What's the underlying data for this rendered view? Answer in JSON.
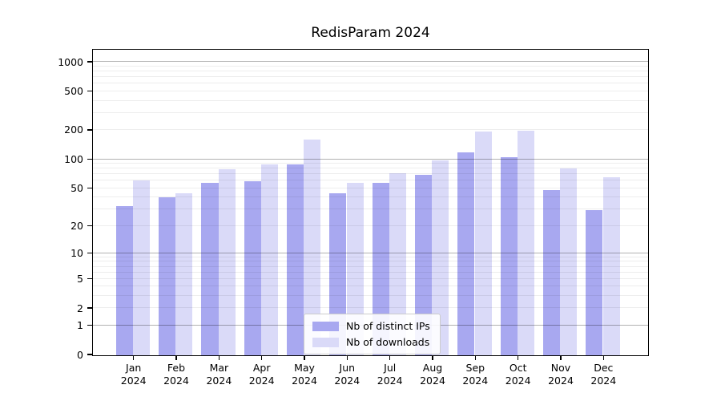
{
  "chart_data": {
    "type": "bar",
    "title": "RedisParam 2024",
    "categories": [
      "Jan",
      "Feb",
      "Mar",
      "Apr",
      "May",
      "Jun",
      "Jul",
      "Aug",
      "Sep",
      "Oct",
      "Nov",
      "Dec"
    ],
    "year_label": "2024",
    "series": [
      {
        "name": "Nb of distinct IPs",
        "color": "#a8a8f0",
        "values": [
          33,
          41,
          57,
          60,
          90,
          45,
          58,
          70,
          119,
          106,
          48,
          30
        ]
      },
      {
        "name": "Nb of downloads",
        "color": "#dadaf8",
        "values": [
          61,
          45,
          80,
          89,
          163,
          58,
          72,
          98,
          195,
          199,
          82,
          66
        ]
      }
    ],
    "yscale": "log1p",
    "ylim": [
      0,
      1310
    ],
    "y_ticks": [
      0,
      1,
      2,
      5,
      10,
      20,
      50,
      100,
      200,
      500,
      1000
    ],
    "major_grid_values": [
      1,
      10,
      100,
      1000
    ],
    "minor_grid_decades": [
      1,
      10,
      100
    ],
    "grid": true,
    "legend_position": "lower center",
    "xlabel": "",
    "ylabel": ""
  }
}
